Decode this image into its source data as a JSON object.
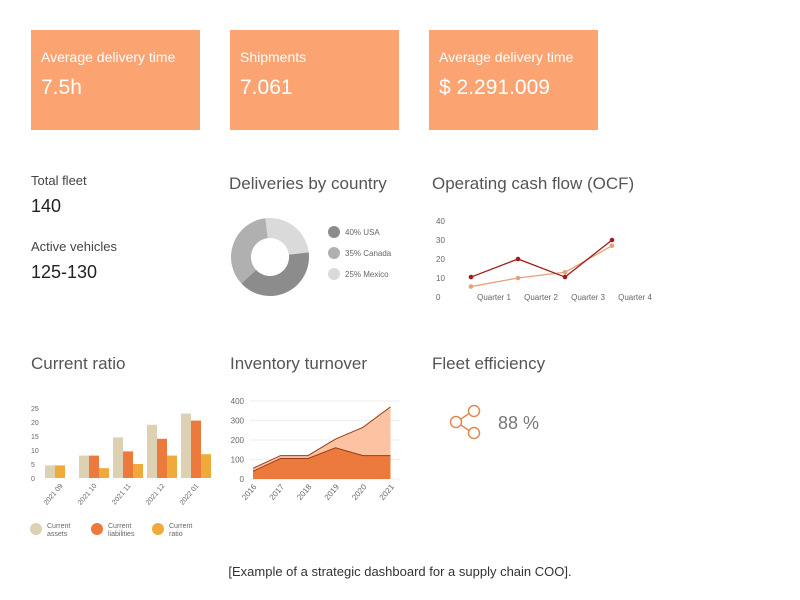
{
  "kpis": [
    {
      "label": "Average delivery time",
      "value": "7.5h"
    },
    {
      "label": "Shipments",
      "value": "7.061"
    },
    {
      "label": "Average delivery time",
      "value": "$ 2.291.009"
    }
  ],
  "fleet": {
    "total_label": "Total fleet",
    "total_value": "140",
    "active_label": "Active vehicles",
    "active_value": "125-130"
  },
  "fleet_efficiency": {
    "title": "Fleet efficiency",
    "value": "88 %",
    "icon": "share-icon",
    "percent": 88
  },
  "colors": {
    "kpi": "#fba371",
    "dark_red": "#a01c1c",
    "light_orange": "#e8a074",
    "assets": "#ddd1b4",
    "liabilities": "#ec7a3c",
    "ratio": "#f0aa3c"
  },
  "caption": "[Example of a strategic dashboard for a supply chain COO].",
  "chart_data": [
    {
      "type": "pie",
      "title": "Deliveries by country",
      "donut": true,
      "slices": [
        {
          "label": "40% USA",
          "value": 40,
          "color": "#8c8c8c"
        },
        {
          "label": "35% Canada",
          "value": 35,
          "color": "#b0b0b0"
        },
        {
          "label": "25% Mexico",
          "value": 25,
          "color": "#dadada"
        }
      ]
    },
    {
      "type": "line",
      "title": "Operating cash flow (OCF)",
      "categories": [
        "Quarter 1",
        "Quarter 2",
        "Quarter 3",
        "Quarter 4"
      ],
      "yticks": [
        "0",
        "10",
        "20",
        "30",
        "40"
      ],
      "ylim": [
        0,
        40
      ],
      "series": [
        {
          "values": [
            10.5,
            20,
            10.5,
            30
          ],
          "color": "#a01c1c"
        },
        {
          "values": [
            5.5,
            10,
            13,
            27
          ],
          "color": "#e8a074"
        }
      ]
    },
    {
      "type": "bar",
      "title": "Current ratio",
      "categories": [
        "2021 09",
        "2021 10",
        "2021 11",
        "2021 12",
        "2022 01"
      ],
      "yticks": [
        "0",
        "5",
        "10",
        "15",
        "20",
        "25"
      ],
      "ylim": [
        0,
        25
      ],
      "series": [
        {
          "name": "Current assets",
          "values": [
            4.5,
            8,
            14.5,
            19,
            23
          ],
          "color": "#ddd1b4"
        },
        {
          "name": "Current liabilities",
          "values": [
            null,
            8,
            9.5,
            14,
            20.5
          ],
          "color": "#ec7a3c"
        },
        {
          "name": "Current ratio",
          "values": [
            4.5,
            3.5,
            5,
            8,
            8.5
          ],
          "color": "#f0aa3c"
        }
      ],
      "legend": "bottom"
    },
    {
      "type": "area",
      "title": "Inventory turnover",
      "categories": [
        "2016",
        "2017",
        "2018",
        "2019",
        "2020",
        "2021"
      ],
      "yticks": [
        "0",
        "100",
        "200",
        "300",
        "400"
      ],
      "ylim": [
        0,
        400
      ],
      "grid": true,
      "series": [
        {
          "values": [
            55,
            120,
            120,
            205,
            265,
            370
          ],
          "color": "#fcc3a3"
        },
        {
          "values": [
            40,
            105,
            105,
            160,
            120,
            120
          ],
          "color": "#ec7a3c"
        }
      ]
    }
  ]
}
